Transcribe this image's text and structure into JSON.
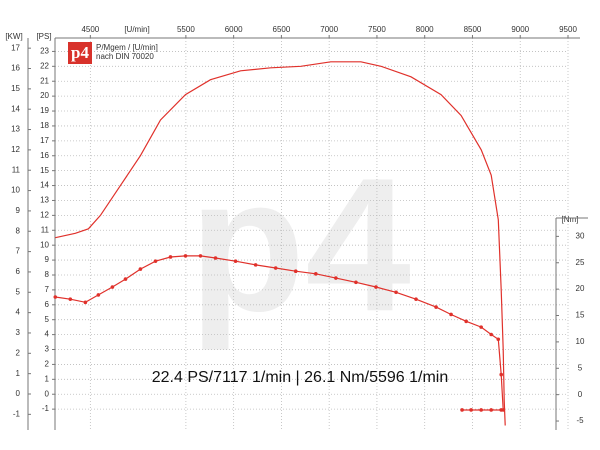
{
  "chart_data": {
    "type": "line",
    "title": "22.4 PS/7117 1/min | 26.1 Nm/5596 1/min",
    "logo": "p4",
    "legend_lines": [
      "P/Mgem / [U/min]",
      "nach DIN 70020"
    ],
    "watermark": "p4",
    "x_label": "[U/min]",
    "y_label": "[PS]",
    "y2_label": "[Nm]",
    "kw_label": "[KW]",
    "xlim": [
      4130,
      9500
    ],
    "xticks": [
      4500,
      5500,
      6000,
      6500,
      7000,
      7500,
      8000,
      8500,
      9000,
      9500
    ],
    "ylim": [
      -2.4,
      23.9
    ],
    "yticks": [
      -1,
      0,
      1,
      2,
      3,
      4,
      5,
      6,
      7,
      8,
      9,
      10,
      11,
      12,
      13,
      14,
      15,
      16,
      17,
      18,
      19,
      20,
      21,
      22,
      23
    ],
    "kwlim": [
      -1.77,
      17.5
    ],
    "kwticks": [
      -1,
      0,
      1,
      2,
      3,
      4,
      5,
      6,
      7,
      8,
      9,
      10,
      11,
      12,
      13,
      14,
      15,
      16,
      17
    ],
    "y2lim": [
      -6.7,
      67.6
    ],
    "y2ticks": [
      -5,
      0,
      5,
      10,
      15,
      20,
      25,
      30
    ],
    "grid": true,
    "series": [
      {
        "color": "#e0312b",
        "axis": "y",
        "markers": false,
        "x": [
          4133,
          4343,
          4480,
          4605,
          4815,
          5024,
          5234,
          5496,
          5758,
          6073,
          6388,
          6703,
          7017,
          7332,
          7542,
          7857,
          8171,
          8381,
          8591,
          8696,
          8770,
          8801,
          8822,
          8832,
          8843
        ],
        "values": [
          10.5,
          10.8,
          11.1,
          12.0,
          14.0,
          16.0,
          18.4,
          20.1,
          21.1,
          21.7,
          21.9,
          22.0,
          22.3,
          22.3,
          22.0,
          21.3,
          20.1,
          18.7,
          16.4,
          14.7,
          11.7,
          7.0,
          3.0,
          -0.4,
          -2.1
        ]
      },
      {
        "color": "#e0312b",
        "axis": "y2",
        "markers": true,
        "x": [
          4133,
          4290,
          4448,
          4584,
          4731,
          4868,
          5024,
          5182,
          5339,
          5496,
          5653,
          5810,
          6020,
          6230,
          6440,
          6650,
          6860,
          7070,
          7280,
          7490,
          7700,
          7909,
          8119,
          8276,
          8434,
          8591,
          8696,
          8770,
          8801,
          8822,
          8801,
          8696,
          8591,
          8486,
          8391
        ],
        "values": [
          18.5,
          18.1,
          17.5,
          18.9,
          20.4,
          21.9,
          23.8,
          25.3,
          26.1,
          26.3,
          26.3,
          25.9,
          25.3,
          24.6,
          24.0,
          23.4,
          22.9,
          22.1,
          21.3,
          20.4,
          19.4,
          18.1,
          16.6,
          15.2,
          13.9,
          12.8,
          11.4,
          10.5,
          3.8,
          -2.9,
          -2.9,
          -2.9,
          -2.9,
          -2.9,
          -2.9
        ]
      }
    ]
  }
}
